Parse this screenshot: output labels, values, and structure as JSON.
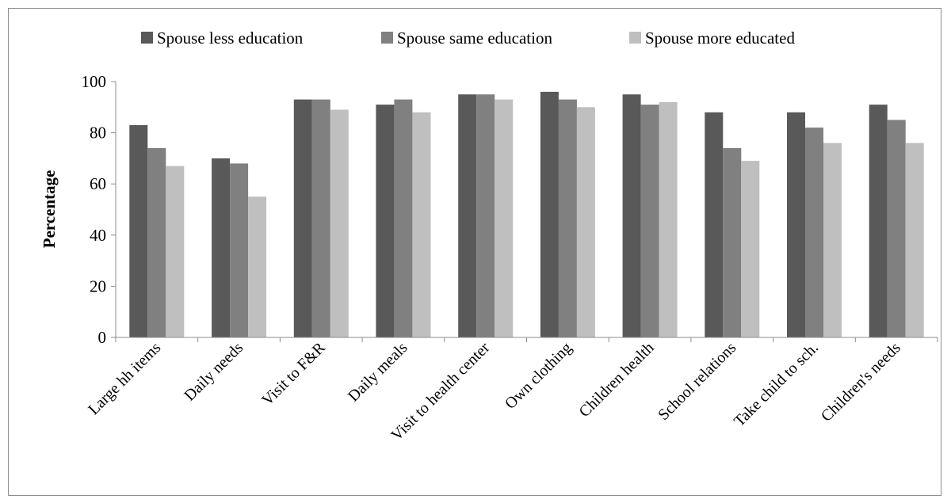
{
  "chart_data": {
    "type": "bar",
    "title": "",
    "xlabel": "",
    "ylabel": "Percentage",
    "ylim": [
      0,
      100
    ],
    "yticks": [
      0,
      20,
      40,
      60,
      80,
      100
    ],
    "grid": false,
    "legend_position": "top",
    "categories": [
      "Large hh items",
      "Daily needs",
      "Visit to F&R",
      "Daily meals",
      "Visit to health center",
      "Own clothing",
      "Children health",
      "School relations",
      "Take child to sch.",
      "Children's needs"
    ],
    "series": [
      {
        "name": "Spouse less education",
        "color": "#595959",
        "values": [
          83,
          70,
          93,
          91,
          95,
          96,
          95,
          88,
          88,
          91
        ]
      },
      {
        "name": "Spouse same education",
        "color": "#808080",
        "values": [
          74,
          68,
          93,
          93,
          95,
          93,
          91,
          74,
          82,
          85
        ]
      },
      {
        "name": "Spouse more educated",
        "color": "#bfbfbf",
        "values": [
          67,
          55,
          89,
          88,
          93,
          90,
          92,
          69,
          76,
          76
        ]
      }
    ]
  }
}
